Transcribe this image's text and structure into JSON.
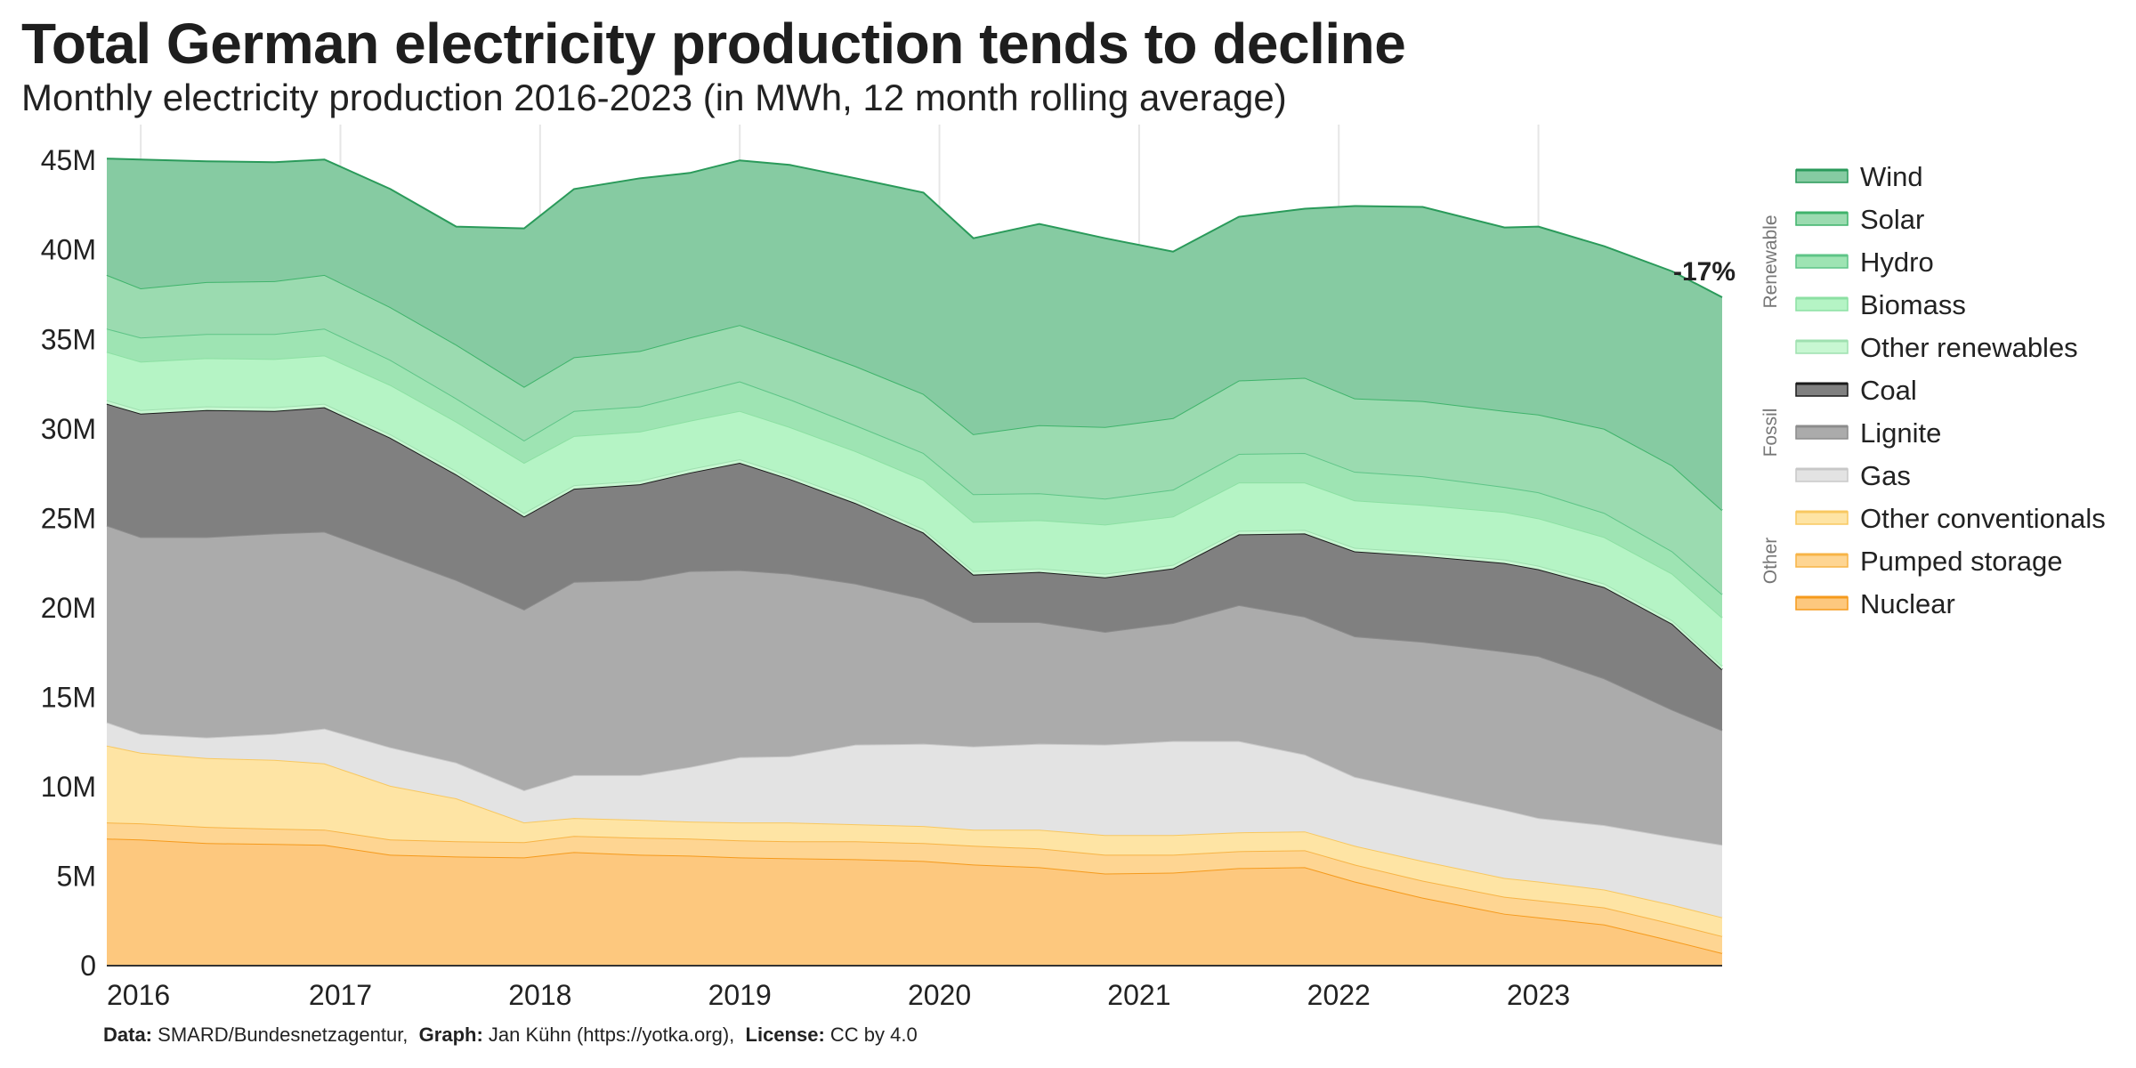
{
  "title": "Total German electricity production tends to decline",
  "subtitle": "Monthly electricity production 2016-2023 (in MWh, 12 month rolling average)",
  "footer": {
    "data_label": "Data:",
    "data_value": "SMARD/Bundesnetzagentur,",
    "graph_label": "Graph:",
    "graph_value": "Jan Kühn (https://yotka.org),",
    "license_label": "License:",
    "license_value": "CC by 4.0"
  },
  "chart_data": {
    "type": "area",
    "stacked": true,
    "title": "Total German electricity production tends to decline",
    "subtitle": "Monthly electricity production 2016-2023 (in MWh, 12 month rolling average)",
    "xlabel": "",
    "ylabel": "",
    "x": [
      2015.83,
      2016.0,
      2016.33,
      2016.67,
      2016.92,
      2017.25,
      2017.58,
      2017.92,
      2018.17,
      2018.5,
      2018.75,
      2019.0,
      2019.25,
      2019.58,
      2019.92,
      2020.17,
      2020.5,
      2020.83,
      2021.17,
      2021.5,
      2021.83,
      2022.08,
      2022.42,
      2022.83,
      2023.0,
      2023.33,
      2023.67,
      2023.92
    ],
    "xlim": [
      2015.83,
      2023.92
    ],
    "ylim": [
      0,
      47000000
    ],
    "x_ticks": [
      2016,
      2017,
      2018,
      2019,
      2020,
      2021,
      2022,
      2023
    ],
    "x_tick_labels": [
      "2016",
      "2017",
      "2018",
      "2019",
      "2020",
      "2021",
      "2022",
      "2023"
    ],
    "y_ticks": [
      0,
      5000000,
      10000000,
      15000000,
      20000000,
      25000000,
      30000000,
      35000000,
      40000000,
      45000000
    ],
    "y_tick_labels": [
      "0",
      "5M",
      "10M",
      "15M",
      "20M",
      "25M",
      "30M",
      "35M",
      "40M",
      "45M"
    ],
    "grid": "vertical",
    "legend_position": "right",
    "series": [
      {
        "name": "Nuclear",
        "color": "#fdc87e",
        "line": "#f59a1c",
        "values": [
          7100000,
          7050000,
          6850000,
          6800000,
          6750000,
          6200000,
          6100000,
          6050000,
          6350000,
          6200000,
          6150000,
          6050000,
          6000000,
          5950000,
          5850000,
          5650000,
          5500000,
          5150000,
          5200000,
          5450000,
          5500000,
          4700000,
          3800000,
          2900000,
          2700000,
          2300000,
          1400000,
          700000
        ]
      },
      {
        "name": "Pumped storage",
        "color": "#fed592",
        "line": "#f7b446",
        "values": [
          900000,
          900000,
          900000,
          850000,
          850000,
          850000,
          850000,
          850000,
          900000,
          950000,
          950000,
          950000,
          950000,
          1000000,
          1000000,
          1050000,
          1050000,
          1050000,
          1000000,
          950000,
          950000,
          950000,
          950000,
          950000,
          950000,
          950000,
          950000,
          950000
        ]
      },
      {
        "name": "Other conventionals",
        "color": "#fee4a4",
        "line": "#f8c860",
        "values": [
          4300000,
          3950000,
          3850000,
          3850000,
          3700000,
          3000000,
          2400000,
          1100000,
          1000000,
          1000000,
          950000,
          1000000,
          1050000,
          950000,
          950000,
          900000,
          1050000,
          1100000,
          1100000,
          1050000,
          1050000,
          1050000,
          1100000,
          1050000,
          1050000,
          1000000,
          1050000,
          1050000
        ]
      },
      {
        "name": "Gas",
        "color": "#e3e3e3",
        "line": "#c8c8c8",
        "values": [
          1300000,
          1050000,
          1150000,
          1450000,
          1950000,
          2150000,
          2000000,
          1800000,
          2400000,
          2500000,
          3050000,
          3650000,
          3700000,
          4450000,
          4600000,
          4650000,
          4800000,
          5050000,
          5250000,
          5100000,
          4300000,
          3850000,
          3850000,
          3800000,
          3550000,
          3600000,
          3800000,
          4050000
        ]
      },
      {
        "name": "Lignite",
        "color": "#ababab",
        "line": "#8c8c8c",
        "values": [
          11000000,
          11000000,
          11200000,
          11200000,
          11000000,
          10700000,
          10200000,
          10100000,
          10800000,
          10900000,
          10950000,
          10450000,
          10200000,
          9000000,
          8100000,
          6950000,
          6800000,
          6300000,
          6600000,
          7600000,
          7700000,
          7850000,
          8400000,
          8850000,
          9050000,
          8200000,
          7100000,
          6400000
        ]
      },
      {
        "name": "Coal",
        "color": "#808080",
        "line": "#1a1a1a",
        "values": [
          6800000,
          6900000,
          7100000,
          6850000,
          6950000,
          6600000,
          5900000,
          5200000,
          5200000,
          5350000,
          5500000,
          6000000,
          5300000,
          4500000,
          3700000,
          2650000,
          2800000,
          3050000,
          3050000,
          3950000,
          4650000,
          4750000,
          4800000,
          4950000,
          4850000,
          5100000,
          4800000,
          3400000
        ]
      },
      {
        "name": "Other renewables",
        "color": "#c8f7d2",
        "line": "#9fe0b0",
        "values": [
          200000,
          200000,
          200000,
          200000,
          200000,
          200000,
          200000,
          200000,
          200000,
          200000,
          200000,
          200000,
          200000,
          200000,
          200000,
          200000,
          200000,
          200000,
          200000,
          200000,
          200000,
          200000,
          200000,
          200000,
          200000,
          200000,
          200000,
          200000
        ]
      },
      {
        "name": "Biomass",
        "color": "#b5f4c5",
        "line": "#8ce0a3",
        "values": [
          2700000,
          2700000,
          2700000,
          2700000,
          2700000,
          2750000,
          2750000,
          2800000,
          2750000,
          2750000,
          2700000,
          2700000,
          2700000,
          2700000,
          2750000,
          2750000,
          2700000,
          2750000,
          2700000,
          2700000,
          2650000,
          2650000,
          2650000,
          2650000,
          2650000,
          2600000,
          2600000,
          2700000
        ]
      },
      {
        "name": "Hydro",
        "color": "#9ee4b3",
        "line": "#5ec487",
        "values": [
          1300000,
          1350000,
          1350000,
          1400000,
          1500000,
          1400000,
          1300000,
          1250000,
          1400000,
          1400000,
          1500000,
          1650000,
          1550000,
          1450000,
          1500000,
          1550000,
          1500000,
          1450000,
          1500000,
          1600000,
          1650000,
          1600000,
          1600000,
          1400000,
          1450000,
          1350000,
          1250000,
          1300000
        ]
      },
      {
        "name": "Solar",
        "color": "#9bdbb0",
        "line": "#3fb36b",
        "values": [
          3000000,
          2750000,
          2900000,
          2950000,
          3000000,
          2950000,
          3000000,
          3000000,
          3000000,
          3100000,
          3150000,
          3150000,
          3200000,
          3300000,
          3300000,
          3350000,
          3800000,
          4000000,
          4000000,
          4100000,
          4200000,
          4100000,
          4200000,
          4250000,
          4350000,
          4700000,
          4800000,
          4700000
        ]
      },
      {
        "name": "Wind",
        "color": "#86cba2",
        "line": "#2a9a5a",
        "values": [
          6500000,
          7200000,
          6750000,
          6650000,
          6450000,
          6600000,
          6600000,
          8850000,
          9400000,
          9650000,
          9200000,
          9200000,
          9900000,
          10500000,
          11250000,
          10950000,
          11250000,
          10550000,
          9300000,
          9150000,
          9450000,
          10750000,
          10850000,
          10250000,
          10500000,
          10200000,
          10850000,
          11900000
        ]
      }
    ],
    "legend_groups": [
      {
        "label": "Renewable",
        "items": [
          "Wind",
          "Solar",
          "Hydro",
          "Biomass",
          "Other renewables"
        ]
      },
      {
        "label": "Fossil",
        "items": [
          "Coal",
          "Lignite",
          "Gas"
        ]
      },
      {
        "label": "Other",
        "items": [
          "Other conventionals",
          "Pumped storage",
          "Nuclear"
        ]
      }
    ],
    "annotations": [
      {
        "text": "-17%",
        "x": 2023.92,
        "y": 37400000
      }
    ]
  }
}
